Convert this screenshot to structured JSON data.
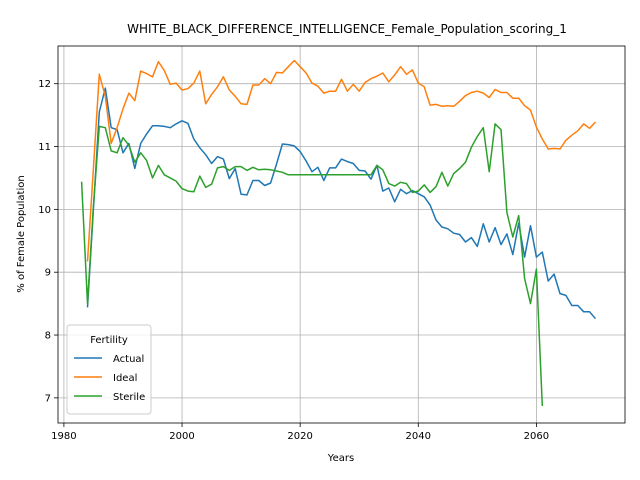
{
  "chart_data": {
    "type": "line",
    "title": "WHITE_BLACK_DIFFERENCE_INTELLIGENCE_Female_Population_scoring_1",
    "xlabel": "Years",
    "ylabel": "% of Female Population",
    "xlim": [
      1979,
      2075
    ],
    "ylim": [
      6.6,
      12.6
    ],
    "xticks": [
      1980,
      2000,
      2020,
      2040,
      2060
    ],
    "yticks": [
      7,
      8,
      9,
      10,
      11,
      12
    ],
    "grid": true,
    "legend": {
      "title": "Fertility",
      "position": "lower-left"
    },
    "series": [
      {
        "name": "Actual",
        "color": "#1f77b4",
        "points": [
          [
            1984,
            8.44
          ],
          [
            1985,
            10.0
          ],
          [
            1986,
            11.55
          ],
          [
            1987,
            11.93
          ],
          [
            1988,
            11.3
          ],
          [
            1989,
            11.27
          ],
          [
            1990,
            10.9
          ],
          [
            1991,
            11.05
          ],
          [
            1992,
            10.65
          ],
          [
            1993,
            11.05
          ],
          [
            1994,
            11.2
          ],
          [
            1995,
            11.33
          ],
          [
            1996,
            11.33
          ],
          [
            1997,
            11.32
          ],
          [
            1998,
            11.3
          ],
          [
            1999,
            11.36
          ],
          [
            2000,
            11.41
          ],
          [
            2001,
            11.37
          ],
          [
            2002,
            11.12
          ],
          [
            2003,
            10.98
          ],
          [
            2004,
            10.87
          ],
          [
            2005,
            10.73
          ],
          [
            2006,
            10.84
          ],
          [
            2007,
            10.8
          ],
          [
            2008,
            10.49
          ],
          [
            2009,
            10.65
          ],
          [
            2010,
            10.24
          ],
          [
            2011,
            10.23
          ],
          [
            2012,
            10.46
          ],
          [
            2013,
            10.46
          ],
          [
            2014,
            10.38
          ],
          [
            2015,
            10.42
          ],
          [
            2016,
            10.72
          ],
          [
            2017,
            11.04
          ],
          [
            2018,
            11.03
          ],
          [
            2019,
            11.01
          ],
          [
            2020,
            10.92
          ],
          [
            2021,
            10.77
          ],
          [
            2022,
            10.6
          ],
          [
            2023,
            10.67
          ],
          [
            2024,
            10.46
          ],
          [
            2025,
            10.66
          ],
          [
            2026,
            10.66
          ],
          [
            2027,
            10.8
          ],
          [
            2028,
            10.76
          ],
          [
            2029,
            10.73
          ],
          [
            2030,
            10.62
          ],
          [
            2031,
            10.61
          ],
          [
            2032,
            10.48
          ],
          [
            2033,
            10.7
          ],
          [
            2034,
            10.29
          ],
          [
            2035,
            10.34
          ],
          [
            2036,
            10.12
          ],
          [
            2037,
            10.32
          ],
          [
            2038,
            10.25
          ],
          [
            2039,
            10.3
          ],
          [
            2040,
            10.25
          ],
          [
            2041,
            10.2
          ],
          [
            2042,
            10.07
          ],
          [
            2043,
            9.83
          ],
          [
            2044,
            9.72
          ],
          [
            2045,
            9.69
          ],
          [
            2046,
            9.62
          ],
          [
            2047,
            9.6
          ],
          [
            2048,
            9.48
          ],
          [
            2049,
            9.55
          ],
          [
            2050,
            9.41
          ],
          [
            2051,
            9.77
          ],
          [
            2052,
            9.48
          ],
          [
            2053,
            9.71
          ],
          [
            2054,
            9.44
          ],
          [
            2055,
            9.61
          ],
          [
            2056,
            9.28
          ],
          [
            2057,
            9.78
          ],
          [
            2058,
            9.24
          ],
          [
            2059,
            9.74
          ],
          [
            2060,
            9.24
          ],
          [
            2061,
            9.32
          ],
          [
            2062,
            8.86
          ],
          [
            2063,
            8.97
          ],
          [
            2064,
            8.66
          ],
          [
            2065,
            8.63
          ],
          [
            2066,
            8.47
          ],
          [
            2067,
            8.47
          ],
          [
            2068,
            8.37
          ],
          [
            2069,
            8.37
          ],
          [
            2070,
            8.26
          ]
        ]
      },
      {
        "name": "Ideal",
        "color": "#ff7f0e",
        "points": [
          [
            1984,
            9.17
          ],
          [
            1985,
            10.65
          ],
          [
            1986,
            12.15
          ],
          [
            1987,
            11.8
          ],
          [
            1988,
            11.05
          ],
          [
            1989,
            11.3
          ],
          [
            1990,
            11.6
          ],
          [
            1991,
            11.85
          ],
          [
            1992,
            11.73
          ],
          [
            1993,
            12.2
          ],
          [
            1994,
            12.16
          ],
          [
            1995,
            12.11
          ],
          [
            1996,
            12.35
          ],
          [
            1997,
            12.21
          ],
          [
            1998,
            11.99
          ],
          [
            1999,
            12.01
          ],
          [
            2000,
            11.9
          ],
          [
            2001,
            11.92
          ],
          [
            2002,
            12.01
          ],
          [
            2003,
            12.2
          ],
          [
            2004,
            11.68
          ],
          [
            2005,
            11.83
          ],
          [
            2006,
            11.95
          ],
          [
            2007,
            12.11
          ],
          [
            2008,
            11.9
          ],
          [
            2009,
            11.8
          ],
          [
            2010,
            11.68
          ],
          [
            2011,
            11.67
          ],
          [
            2012,
            11.98
          ],
          [
            2013,
            11.98
          ],
          [
            2014,
            12.08
          ],
          [
            2015,
            12.0
          ],
          [
            2016,
            12.18
          ],
          [
            2017,
            12.17
          ],
          [
            2018,
            12.27
          ],
          [
            2019,
            12.37
          ],
          [
            2020,
            12.27
          ],
          [
            2021,
            12.17
          ],
          [
            2022,
            12.01
          ],
          [
            2023,
            11.96
          ],
          [
            2024,
            11.85
          ],
          [
            2025,
            11.88
          ],
          [
            2026,
            11.88
          ],
          [
            2027,
            12.07
          ],
          [
            2028,
            11.88
          ],
          [
            2029,
            11.99
          ],
          [
            2030,
            11.88
          ],
          [
            2031,
            12.02
          ],
          [
            2032,
            12.08
          ],
          [
            2033,
            12.12
          ],
          [
            2034,
            12.17
          ],
          [
            2035,
            12.03
          ],
          [
            2036,
            12.14
          ],
          [
            2037,
            12.27
          ],
          [
            2038,
            12.15
          ],
          [
            2039,
            12.22
          ],
          [
            2040,
            12.01
          ],
          [
            2041,
            11.95
          ],
          [
            2042,
            11.66
          ],
          [
            2043,
            11.67
          ],
          [
            2044,
            11.64
          ],
          [
            2045,
            11.65
          ],
          [
            2046,
            11.64
          ],
          [
            2047,
            11.72
          ],
          [
            2048,
            11.81
          ],
          [
            2049,
            11.86
          ],
          [
            2050,
            11.88
          ],
          [
            2051,
            11.85
          ],
          [
            2052,
            11.78
          ],
          [
            2053,
            11.91
          ],
          [
            2054,
            11.86
          ],
          [
            2055,
            11.86
          ],
          [
            2056,
            11.77
          ],
          [
            2057,
            11.77
          ],
          [
            2058,
            11.65
          ],
          [
            2059,
            11.58
          ],
          [
            2060,
            11.31
          ],
          [
            2061,
            11.12
          ],
          [
            2062,
            10.96
          ],
          [
            2063,
            10.97
          ],
          [
            2064,
            10.96
          ],
          [
            2065,
            11.1
          ],
          [
            2066,
            11.18
          ],
          [
            2067,
            11.25
          ],
          [
            2068,
            11.36
          ],
          [
            2069,
            11.29
          ],
          [
            2070,
            11.39
          ]
        ]
      },
      {
        "name": "Sterile",
        "color": "#2ca02c",
        "points": [
          [
            1983,
            10.44
          ],
          [
            1984,
            8.5
          ],
          [
            1985,
            10.05
          ],
          [
            1986,
            11.32
          ],
          [
            1987,
            11.3
          ],
          [
            1988,
            10.93
          ],
          [
            1989,
            10.9
          ],
          [
            1990,
            11.14
          ],
          [
            1991,
            11.02
          ],
          [
            1992,
            10.75
          ],
          [
            1993,
            10.9
          ],
          [
            1994,
            10.78
          ],
          [
            1995,
            10.5
          ],
          [
            1996,
            10.7
          ],
          [
            1997,
            10.55
          ],
          [
            1998,
            10.5
          ],
          [
            1999,
            10.45
          ],
          [
            2000,
            10.33
          ],
          [
            2001,
            10.29
          ],
          [
            2002,
            10.28
          ],
          [
            2003,
            10.53
          ],
          [
            2004,
            10.35
          ],
          [
            2005,
            10.4
          ],
          [
            2006,
            10.66
          ],
          [
            2007,
            10.68
          ],
          [
            2008,
            10.62
          ],
          [
            2009,
            10.68
          ],
          [
            2010,
            10.68
          ],
          [
            2011,
            10.62
          ],
          [
            2012,
            10.67
          ],
          [
            2013,
            10.63
          ],
          [
            2014,
            10.64
          ],
          [
            2015,
            10.63
          ],
          [
            2016,
            10.61
          ],
          [
            2017,
            10.59
          ],
          [
            2018,
            10.55
          ],
          [
            2019,
            10.55
          ],
          [
            2020,
            10.55
          ],
          [
            2021,
            10.55
          ],
          [
            2022,
            10.55
          ],
          [
            2023,
            10.55
          ],
          [
            2024,
            10.55
          ],
          [
            2025,
            10.55
          ],
          [
            2026,
            10.55
          ],
          [
            2027,
            10.55
          ],
          [
            2028,
            10.55
          ],
          [
            2029,
            10.55
          ],
          [
            2030,
            10.55
          ],
          [
            2031,
            10.55
          ],
          [
            2032,
            10.55
          ],
          [
            2033,
            10.7
          ],
          [
            2034,
            10.63
          ],
          [
            2035,
            10.41
          ],
          [
            2036,
            10.37
          ],
          [
            2037,
            10.43
          ],
          [
            2038,
            10.41
          ],
          [
            2039,
            10.27
          ],
          [
            2040,
            10.29
          ],
          [
            2041,
            10.39
          ],
          [
            2042,
            10.27
          ],
          [
            2043,
            10.36
          ],
          [
            2044,
            10.59
          ],
          [
            2045,
            10.37
          ],
          [
            2046,
            10.57
          ],
          [
            2047,
            10.65
          ],
          [
            2048,
            10.75
          ],
          [
            2049,
            10.99
          ],
          [
            2050,
            11.16
          ],
          [
            2051,
            11.3
          ],
          [
            2052,
            10.6
          ],
          [
            2053,
            11.36
          ],
          [
            2054,
            11.27
          ],
          [
            2055,
            9.95
          ],
          [
            2056,
            9.56
          ],
          [
            2057,
            9.9
          ],
          [
            2058,
            8.9
          ],
          [
            2059,
            8.5
          ],
          [
            2060,
            9.05
          ],
          [
            2061,
            6.87
          ]
        ]
      }
    ]
  }
}
